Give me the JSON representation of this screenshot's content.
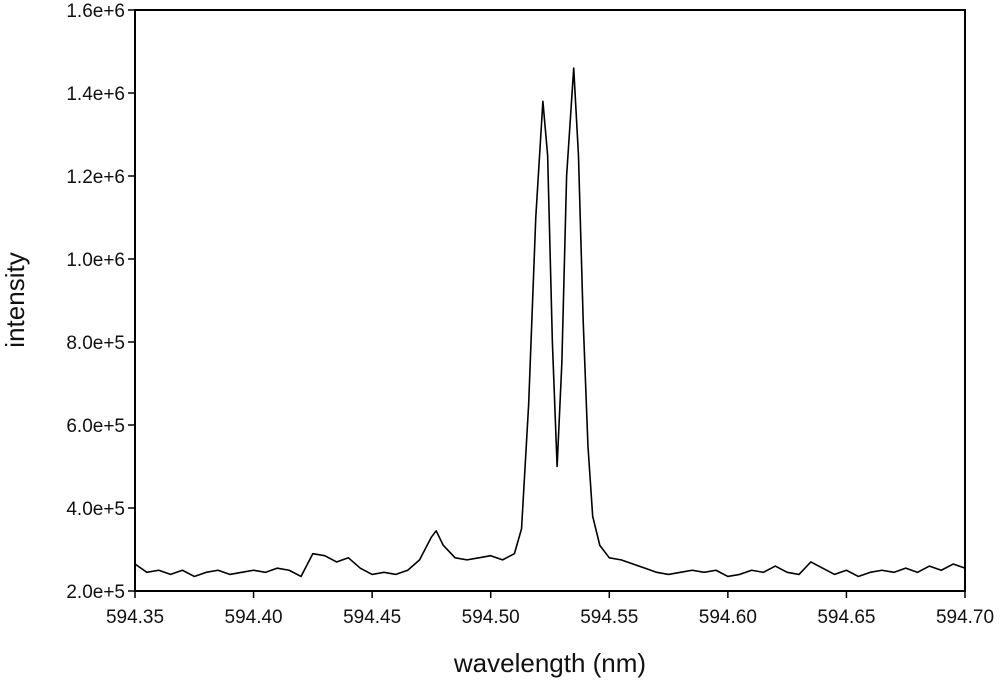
{
  "chart_data": {
    "type": "line",
    "xlabel": "wavelength (nm)",
    "ylabel": "intensity",
    "xlim": [
      594.35,
      594.7
    ],
    "xticks": [
      594.35,
      {
        "value": 594.4,
        "label": "594.40"
      },
      594.45,
      {
        "value": 594.5,
        "label": "594.50"
      },
      594.55,
      {
        "value": 594.6,
        "label": "594.60"
      },
      594.65,
      {
        "value": 594.7,
        "label": "594.70"
      }
    ],
    "ylim": [
      200000,
      1600000
    ],
    "yticks": [
      {
        "value": 200000,
        "label": "2.0e+5"
      },
      {
        "value": 400000,
        "label": "4.0e+5"
      },
      {
        "value": 600000,
        "label": "6.0e+5"
      },
      {
        "value": 800000,
        "label": "8.0e+5"
      },
      {
        "value": 1000000,
        "label": "1.0e+6"
      },
      {
        "value": 1200000,
        "label": "1.2e+6"
      },
      {
        "value": 1400000,
        "label": "1.4e+6"
      },
      {
        "value": 1600000,
        "label": "1.6e+6"
      }
    ],
    "grid": false,
    "series": [
      {
        "color": "#000000",
        "x": [
          594.35,
          594.355,
          594.36,
          594.365,
          594.37,
          594.375,
          594.38,
          594.385,
          594.39,
          594.395,
          594.4,
          594.405,
          594.41,
          594.415,
          594.42,
          594.425,
          594.43,
          594.435,
          594.44,
          594.445,
          594.45,
          594.455,
          594.46,
          594.465,
          594.47,
          594.475,
          594.477,
          594.48,
          594.485,
          594.49,
          594.495,
          594.5,
          594.505,
          594.51,
          594.513,
          594.516,
          594.519,
          594.522,
          594.524,
          594.526,
          594.528,
          594.53,
          594.532,
          594.535,
          594.537,
          594.539,
          594.541,
          594.543,
          594.546,
          594.55,
          594.555,
          594.56,
          594.565,
          594.57,
          594.575,
          594.58,
          594.585,
          594.59,
          594.595,
          594.6,
          594.605,
          594.61,
          594.615,
          594.62,
          594.625,
          594.63,
          594.635,
          594.64,
          594.645,
          594.65,
          594.655,
          594.66,
          594.665,
          594.67,
          594.675,
          594.68,
          594.685,
          594.69,
          594.695,
          594.7
        ],
        "values": [
          265000,
          245000,
          250000,
          240000,
          250000,
          235000,
          245000,
          250000,
          240000,
          245000,
          250000,
          245000,
          255000,
          250000,
          235000,
          290000,
          285000,
          270000,
          280000,
          255000,
          240000,
          245000,
          240000,
          250000,
          275000,
          330000,
          345000,
          310000,
          280000,
          275000,
          280000,
          285000,
          275000,
          290000,
          350000,
          650000,
          1100000,
          1380000,
          1250000,
          800000,
          500000,
          750000,
          1200000,
          1460000,
          1250000,
          850000,
          550000,
          380000,
          310000,
          280000,
          275000,
          265000,
          255000,
          245000,
          240000,
          245000,
          250000,
          245000,
          250000,
          235000,
          240000,
          250000,
          245000,
          260000,
          245000,
          240000,
          270000,
          255000,
          240000,
          250000,
          235000,
          245000,
          250000,
          245000,
          255000,
          245000,
          260000,
          250000,
          265000,
          255000
        ]
      }
    ]
  }
}
